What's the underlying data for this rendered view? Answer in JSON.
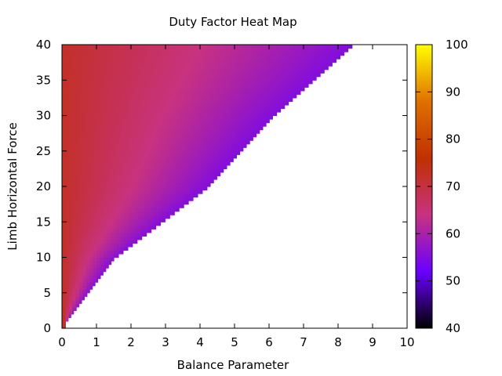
{
  "chart_data": {
    "type": "heatmap",
    "title": "Duty Factor Heat Map",
    "xlabel": "Balance Parameter",
    "ylabel": "Limb Horizontal Force",
    "xlim": [
      0,
      10
    ],
    "ylim": [
      0,
      40
    ],
    "x_ticks": [
      "0",
      "1",
      "2",
      "3",
      "4",
      "5",
      "6",
      "7",
      "8",
      "9",
      "10"
    ],
    "y_ticks": [
      "0",
      "5",
      "10",
      "15",
      "20",
      "25",
      "30",
      "35",
      "40"
    ],
    "colorbar": {
      "range": [
        40,
        100
      ],
      "ticks": [
        "40",
        "50",
        "60",
        "70",
        "80",
        "90",
        "100"
      ],
      "palette": [
        "#000000",
        "#6a00ff",
        "#c83280",
        "#c03000",
        "#e07000",
        "#ffff00"
      ]
    },
    "region": {
      "description_points": [
        {
          "force": 40,
          "balance_max": 8.4
        },
        {
          "force": 30,
          "balance_max": 6.1
        },
        {
          "force": 20,
          "balance_max": 4.2
        },
        {
          "force": 10,
          "balance_max": 1.5
        },
        {
          "force": 1,
          "balance_max": 0.1
        }
      ],
      "value_at_zero_balance": 72,
      "value_at_edge": 55
    }
  }
}
